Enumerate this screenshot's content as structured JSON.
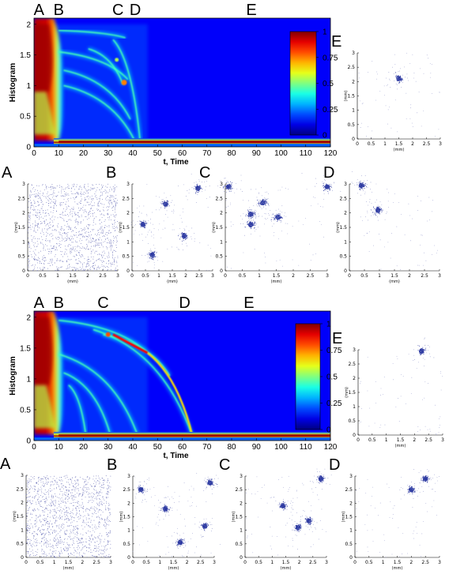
{
  "chart_data": {
    "type": "heatmap",
    "colorbar_ticks": [
      "0",
      "0.25",
      "0.5",
      "0.75",
      "1"
    ],
    "heatmap_panels": [
      {
        "id": "top",
        "xlabel": "t, Time",
        "ylabel": "Histogram",
        "xlim": [
          0,
          120
        ],
        "ylim": [
          0,
          2.1
        ],
        "x_ticks": [
          "0",
          "10",
          "20",
          "30",
          "40",
          "50",
          "60",
          "70",
          "80",
          "90",
          "100",
          "110",
          "120"
        ],
        "y_ticks": [
          "0",
          "0.5",
          "1",
          "1.5",
          "2"
        ],
        "markers": [
          {
            "label": "A",
            "x": 2
          },
          {
            "label": "B",
            "x": 10
          },
          {
            "label": "C",
            "x": 34
          },
          {
            "label": "D",
            "x": 41
          },
          {
            "label": "E",
            "x": 88
          }
        ],
        "branches": [
          {
            "start": [
              10,
              1.9
            ],
            "end": [
              37,
              1.78
            ],
            "end_t": 37
          },
          {
            "start": [
              10,
              1.55
            ],
            "end": [
              38,
              1.1
            ],
            "end_t": 38
          },
          {
            "start": [
              12,
              1.25
            ],
            "end": [
              39,
              0.45
            ],
            "end_t": 39
          },
          {
            "start": [
              12,
              1.0
            ],
            "end": [
              41,
              0.08
            ],
            "end_t": 41
          },
          {
            "start": [
              22,
              1.6
            ],
            "end": [
              36,
              1.02
            ],
            "end_t": 36
          },
          {
            "start": [
              32,
              1.75
            ],
            "end": [
              43,
              0.08
            ],
            "end_t": 43
          }
        ]
      },
      {
        "id": "bottom",
        "xlabel": "t, Time",
        "ylabel": "Histogram",
        "xlim": [
          0,
          120
        ],
        "ylim": [
          0,
          2.1
        ],
        "x_ticks": [
          "0",
          "10",
          "20",
          "30",
          "40",
          "50",
          "60",
          "70",
          "80",
          "90",
          "100",
          "110",
          "120"
        ],
        "y_ticks": [
          "0",
          "0.5",
          "1",
          "1.5",
          "2"
        ],
        "markers": [
          {
            "label": "A",
            "x": 2
          },
          {
            "label": "B",
            "x": 10
          },
          {
            "label": "C",
            "x": 28
          },
          {
            "label": "D",
            "x": 61
          },
          {
            "label": "E",
            "x": 87
          }
        ],
        "branches": [
          {
            "start": [
              10,
              1.95
            ],
            "end": [
              45,
              1.45
            ],
            "end_t": 45
          },
          {
            "start": [
              10,
              1.4
            ],
            "end": [
              42,
              0.08
            ],
            "end_t": 42
          },
          {
            "start": [
              12,
              1.1
            ],
            "end": [
              31,
              0.08
            ],
            "end_t": 31
          },
          {
            "start": [
              14,
              0.9
            ],
            "end": [
              21,
              0.08
            ],
            "end_t": 21
          },
          {
            "start": [
              24,
              1.8
            ],
            "end": [
              64,
              0.08
            ],
            "end_t": 64
          },
          {
            "start": [
              28,
              1.72
            ],
            "end": [
              55,
              1.05
            ],
            "end_t": 55
          }
        ]
      }
    ],
    "scatter_panels": [
      {
        "id": "top-A",
        "label": "A",
        "xlabel": "(mm)",
        "ylabel": "(mm)",
        "xlim": [
          0,
          3
        ],
        "ylim": [
          0,
          3
        ],
        "x_ticks": [
          "0",
          "0.5",
          "1",
          "1.5",
          "2",
          "2.5",
          "3"
        ],
        "y_ticks": [
          "0",
          "0.5",
          "1",
          "1.5",
          "2",
          "2.5",
          "3"
        ],
        "uniform": true,
        "clusters": []
      },
      {
        "id": "top-B",
        "label": "B",
        "xlabel": "(mm)",
        "ylabel": "(mm)",
        "xlim": [
          0,
          3
        ],
        "ylim": [
          0,
          3
        ],
        "x_ticks": [
          "0",
          "0.5",
          "1",
          "1.5",
          "2",
          "2.5",
          "3"
        ],
        "y_ticks": [
          "0",
          "0.5",
          "1",
          "1.5",
          "2",
          "2.5",
          "3"
        ],
        "uniform": false,
        "clusters": [
          [
            0.4,
            1.6
          ],
          [
            1.25,
            2.3
          ],
          [
            0.75,
            0.55
          ],
          [
            1.95,
            1.2
          ],
          [
            2.45,
            2.85
          ]
        ]
      },
      {
        "id": "top-C",
        "label": "C",
        "xlabel": "(mm)",
        "ylabel": "(mm)",
        "xlim": [
          0,
          3
        ],
        "ylim": [
          0,
          3
        ],
        "x_ticks": [
          "0",
          "0.5",
          "1",
          "1.5",
          "2",
          "2.5",
          "3"
        ],
        "y_ticks": [
          "0",
          "0.5",
          "1",
          "1.5",
          "2",
          "2.5",
          "3"
        ],
        "uniform": false,
        "clusters": [
          [
            0.1,
            2.9
          ],
          [
            0.75,
            1.95
          ],
          [
            0.75,
            1.6
          ],
          [
            1.1,
            2.35
          ],
          [
            1.55,
            1.85
          ],
          [
            3.0,
            2.9
          ]
        ]
      },
      {
        "id": "top-D",
        "label": "D",
        "xlabel": "(mm)",
        "ylabel": "(mm)",
        "xlim": [
          0,
          3
        ],
        "ylim": [
          0,
          3
        ],
        "x_ticks": [
          "0",
          "0.5",
          "1",
          "1.5",
          "2",
          "2.5",
          "3"
        ],
        "y_ticks": [
          "0",
          "0.5",
          "1",
          "1.5",
          "2",
          "2.5",
          "3"
        ],
        "uniform": false,
        "clusters": [
          [
            0.4,
            2.95
          ],
          [
            0.95,
            2.1
          ]
        ]
      },
      {
        "id": "top-E",
        "label": "E",
        "xlabel": "(mm)",
        "ylabel": "(mm)",
        "xlim": [
          0,
          3
        ],
        "ylim": [
          0,
          3
        ],
        "x_ticks": [
          "0",
          "0.5",
          "1",
          "1.5",
          "2",
          "2.5",
          "3"
        ],
        "y_ticks": [
          "0",
          "0.5",
          "1",
          "1.5",
          "2",
          "2.5",
          "3"
        ],
        "uniform": false,
        "clusters": [
          [
            1.5,
            2.1
          ]
        ]
      },
      {
        "id": "bottom-A",
        "label": "A",
        "xlabel": "(mm)",
        "ylabel": "(mm)",
        "xlim": [
          0,
          3
        ],
        "ylim": [
          0,
          3
        ],
        "x_ticks": [
          "0",
          "0.5",
          "1",
          "1.5",
          "2",
          "2.5",
          "3"
        ],
        "y_ticks": [
          "0",
          "0.5",
          "1",
          "1.5",
          "2",
          "2.5",
          "3"
        ],
        "uniform": true,
        "clusters": []
      },
      {
        "id": "bottom-B",
        "label": "B",
        "xlabel": "(mm)",
        "ylabel": "(mm)",
        "xlim": [
          0,
          3
        ],
        "ylim": [
          0,
          3
        ],
        "x_ticks": [
          "0",
          "0.5",
          "1",
          "1.5",
          "2",
          "2.5",
          "3"
        ],
        "y_ticks": [
          "0",
          "0.5",
          "1",
          "1.5",
          "2",
          "2.5",
          "3"
        ],
        "uniform": false,
        "clusters": [
          [
            0.3,
            2.5
          ],
          [
            1.2,
            1.8
          ],
          [
            1.75,
            0.55
          ],
          [
            2.65,
            1.15
          ],
          [
            2.85,
            2.75
          ]
        ]
      },
      {
        "id": "bottom-C",
        "label": "C",
        "xlabel": "(mm)",
        "ylabel": "(mm)",
        "xlim": [
          0,
          3
        ],
        "ylim": [
          0,
          3
        ],
        "x_ticks": [
          "0",
          "0.5",
          "1",
          "1.5",
          "2",
          "2.5",
          "3"
        ],
        "y_ticks": [
          "0",
          "0.5",
          "1",
          "1.5",
          "2",
          "2.5",
          "3"
        ],
        "uniform": false,
        "clusters": [
          [
            1.4,
            1.9
          ],
          [
            1.95,
            1.1
          ],
          [
            2.35,
            1.35
          ],
          [
            2.8,
            2.9
          ]
        ]
      },
      {
        "id": "bottom-D",
        "label": "D",
        "xlabel": "(mm)",
        "ylabel": "(mm)",
        "xlim": [
          0,
          3
        ],
        "ylim": [
          0,
          3
        ],
        "x_ticks": [
          "0",
          "0.5",
          "1",
          "1.5",
          "2",
          "2.5",
          "3"
        ],
        "y_ticks": [
          "0",
          "0.5",
          "1",
          "1.5",
          "2",
          "2.5",
          "3"
        ],
        "uniform": false,
        "clusters": [
          [
            2.0,
            2.5
          ],
          [
            2.5,
            2.9
          ]
        ]
      },
      {
        "id": "bottom-E",
        "label": "E",
        "xlabel": "(mm)",
        "ylabel": "(mm)",
        "xlim": [
          0,
          3
        ],
        "ylim": [
          0,
          3
        ],
        "x_ticks": [
          "0",
          "0.5",
          "1",
          "1.5",
          "2",
          "2.5",
          "3"
        ],
        "y_ticks": [
          "0",
          "0.5",
          "1",
          "1.5",
          "2",
          "2.5",
          "3"
        ],
        "uniform": false,
        "clusters": [
          [
            2.25,
            2.95
          ]
        ]
      }
    ]
  }
}
